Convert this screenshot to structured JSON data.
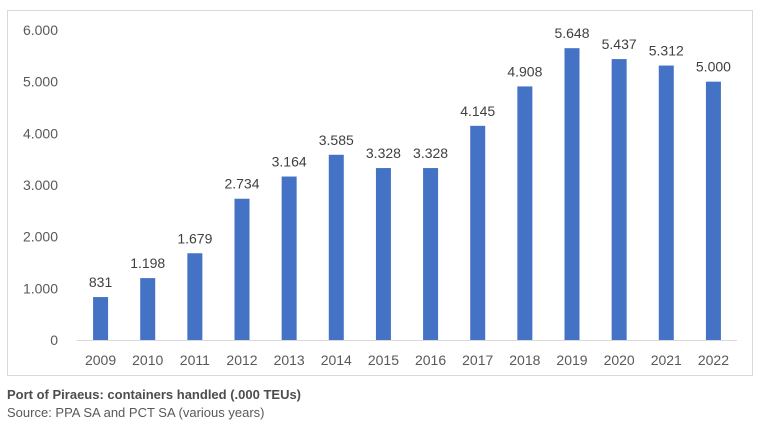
{
  "chart_data": {
    "type": "bar",
    "categories": [
      "2009",
      "2010",
      "2011",
      "2012",
      "2013",
      "2014",
      "2015",
      "2016",
      "2017",
      "2018",
      "2019",
      "2020",
      "2021",
      "2022"
    ],
    "values": [
      831,
      1198,
      1679,
      2734,
      3164,
      3585,
      3328,
      3328,
      4145,
      4908,
      5648,
      5437,
      5312,
      5000
    ],
    "data_labels": [
      "831",
      "1.198",
      "1.679",
      "2.734",
      "3.164",
      "3.585",
      "3.328",
      "3.328",
      "4.145",
      "4.908",
      "5.648",
      "5.437",
      "5.312",
      "5.000"
    ],
    "ylim": [
      0,
      6000
    ],
    "yticks": [
      0,
      1000,
      2000,
      3000,
      4000,
      5000,
      6000
    ],
    "ytick_labels": [
      "0",
      "1.000",
      "2.000",
      "3.000",
      "4.000",
      "5.000",
      "6.000"
    ],
    "grid": false,
    "legend": "none",
    "bar_color": "#4472c4"
  },
  "caption": {
    "title": "Port of Piraeus: containers handled (.000 TEUs)",
    "source": "Source: PPA SA and PCT SA (various years)"
  }
}
